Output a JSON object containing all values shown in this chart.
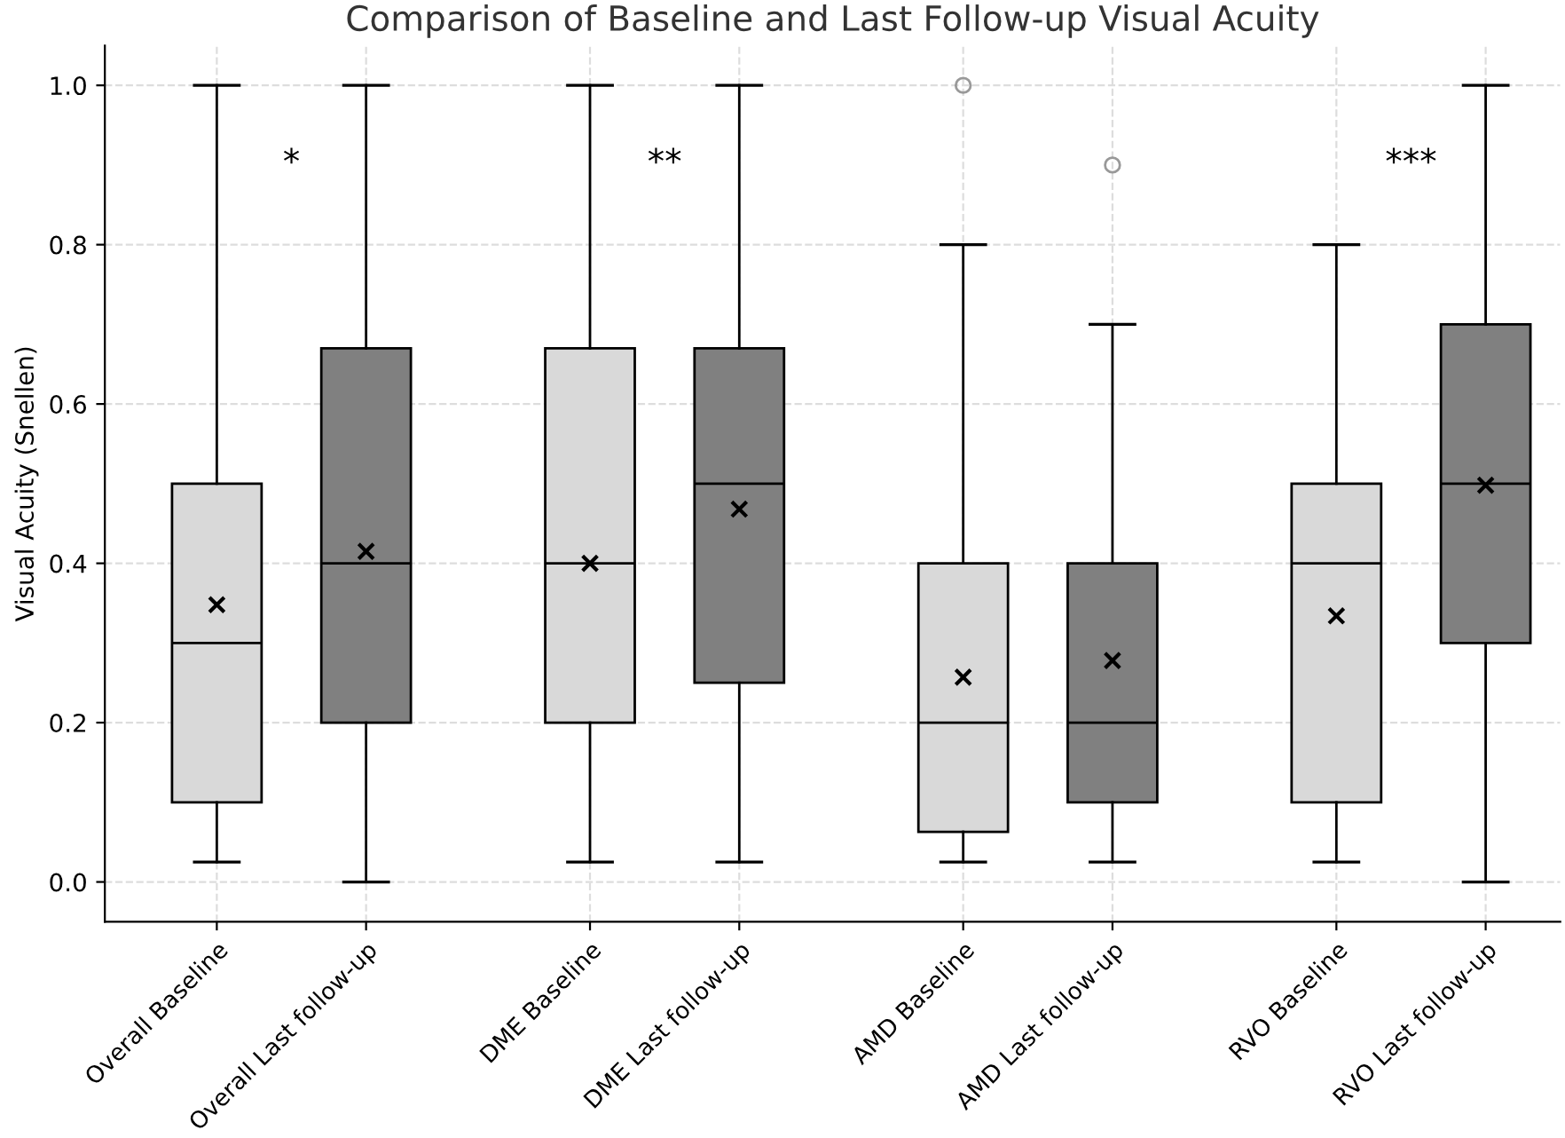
{
  "chart_data": {
    "type": "box",
    "title": "Comparison of Baseline and Last Follow-up Visual Acuity",
    "ylabel": "Visual Acuity (Snellen)",
    "categories": [
      "Overall Baseline",
      "Overall Last follow-up",
      "DME Baseline",
      "DME Last follow-up",
      "AMD Baseline",
      "AMD Last follow-up",
      "RVO Baseline",
      "RVO Last follow-up"
    ],
    "colors": [
      "#d9d9d9",
      "#808080",
      "#d9d9d9",
      "#808080",
      "#d9d9d9",
      "#808080",
      "#d9d9d9",
      "#808080"
    ],
    "boxes": [
      {
        "low": 0.025,
        "q1": 0.1,
        "median": 0.3,
        "q3": 0.5,
        "high": 1.0,
        "mean": 0.348
      },
      {
        "low": 0.0,
        "q1": 0.2,
        "median": 0.4,
        "q3": 0.67,
        "high": 1.0,
        "mean": 0.415
      },
      {
        "low": 0.025,
        "q1": 0.2,
        "median": 0.4,
        "q3": 0.67,
        "high": 1.0,
        "mean": 0.4
      },
      {
        "low": 0.025,
        "q1": 0.25,
        "median": 0.5,
        "q3": 0.67,
        "high": 1.0,
        "mean": 0.468
      },
      {
        "low": 0.025,
        "q1": 0.063,
        "median": 0.2,
        "q3": 0.4,
        "high": 0.8,
        "mean": 0.257,
        "outliers": [
          1.0
        ]
      },
      {
        "low": 0.025,
        "q1": 0.1,
        "median": 0.2,
        "q3": 0.4,
        "high": 0.7,
        "mean": 0.278,
        "outliers": [
          0.9
        ]
      },
      {
        "low": 0.025,
        "q1": 0.1,
        "median": 0.4,
        "q3": 0.5,
        "high": 0.8,
        "mean": 0.334
      },
      {
        "low": 0.0,
        "q1": 0.3,
        "median": 0.5,
        "q3": 0.7,
        "high": 1.0,
        "mean": 0.498
      }
    ],
    "annotations": [
      "*",
      "**",
      "***"
    ],
    "ylim": [
      -0.05,
      1.05
    ],
    "yticks": [
      {
        "value": 0,
        "label": "0.0"
      },
      {
        "value": 0.2,
        "label": "0.2"
      },
      {
        "value": 0.4,
        "label": "0.4"
      },
      {
        "value": 0.6,
        "label": "0.6"
      },
      {
        "value": 0.8,
        "label": "0.8"
      },
      {
        "value": 1,
        "label": "1.0"
      }
    ],
    "grid": true
  }
}
